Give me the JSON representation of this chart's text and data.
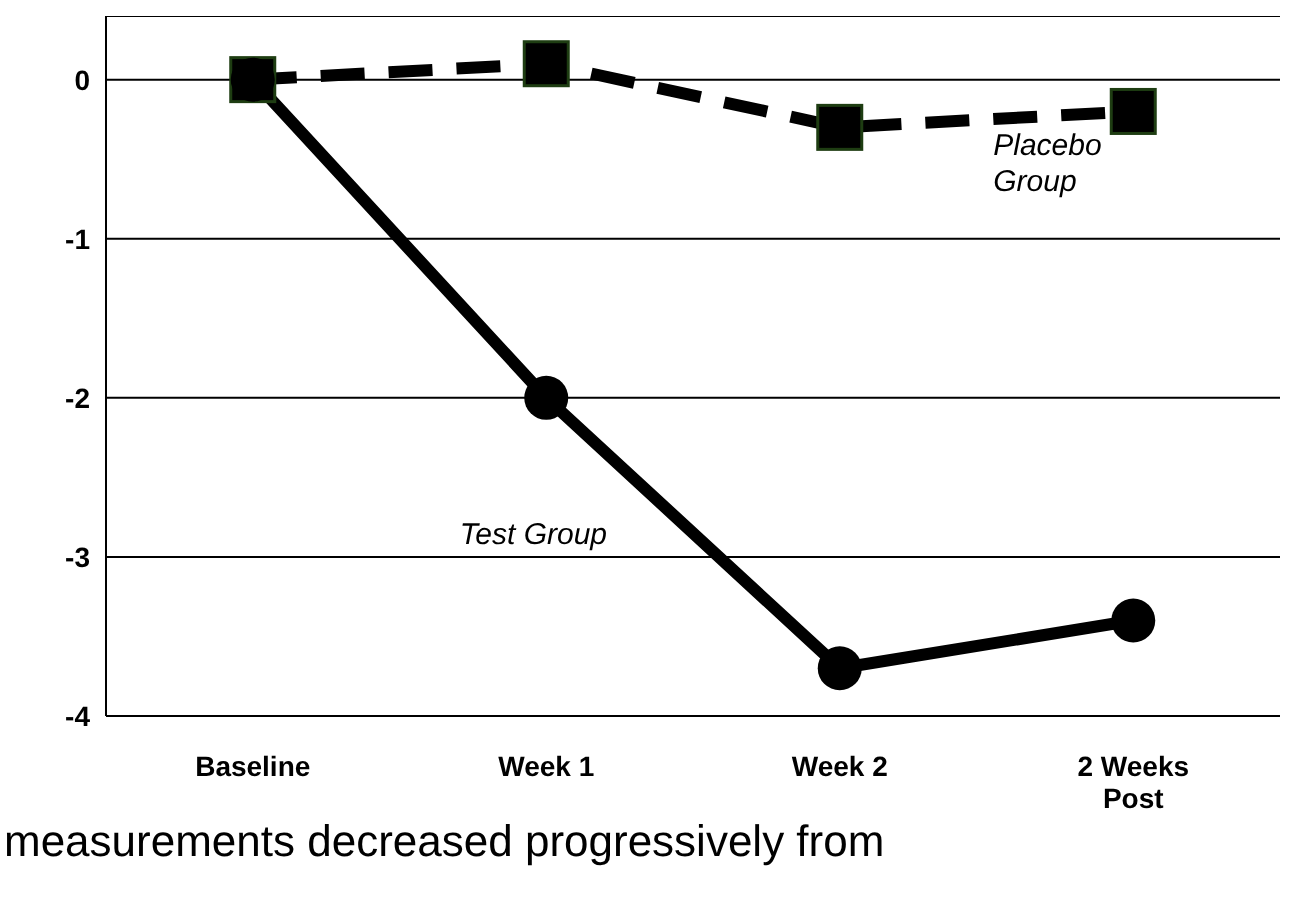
{
  "chart_data": {
    "type": "line",
    "categories": [
      "Baseline",
      "Week 1",
      "Week 2",
      "2 Weeks Post"
    ],
    "series": [
      {
        "name": "Placebo Group",
        "color": "#000000",
        "values": [
          0,
          0.1,
          -0.3,
          -0.2
        ],
        "marker": "square",
        "line_style": "dashed"
      },
      {
        "name": "Test Group",
        "color": "#000000",
        "values": [
          0,
          -2,
          -3.7,
          -3.4
        ],
        "marker": "circle",
        "line_style": "solid"
      }
    ],
    "ylim": [
      -4,
      0.4
    ],
    "yticks": [
      -4,
      -3,
      -2,
      -1,
      0
    ],
    "grid": "y",
    "annotations": [
      "measurements decreased progressively from"
    ]
  }
}
